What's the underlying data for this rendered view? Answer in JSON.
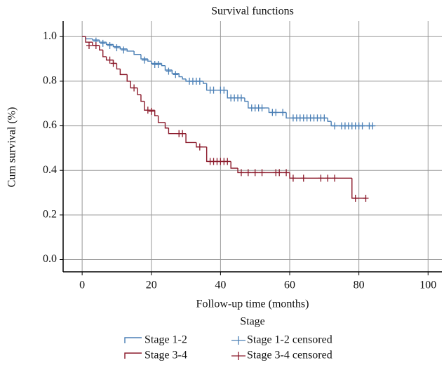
{
  "chart_data": {
    "type": "kaplan-meier",
    "title": "Survival functions",
    "x_label": "Follow-up time (months)",
    "y_label": "Cum survival (%)",
    "legend_title": "Stage",
    "xlim": [
      -5.5,
      104
    ],
    "ylim": [
      -0.055,
      1.07
    ],
    "xticks": [
      0,
      20,
      40,
      60,
      80,
      100
    ],
    "yticks": [
      {
        "value": 0,
        "label": "0.0"
      },
      0.2,
      0.4,
      0.6,
      0.8,
      {
        "value": 1,
        "label": "1.0"
      }
    ],
    "grid": true,
    "series": [
      {
        "name": "Stage 1-2",
        "color": "#4a7fb5",
        "style": "step",
        "x": [
          0,
          1,
          3,
          5,
          7,
          9,
          11,
          13,
          15,
          17,
          19,
          20,
          23,
          24,
          26,
          28,
          29,
          30,
          35,
          36,
          42,
          47,
          48,
          54,
          59,
          71,
          72,
          84
        ],
        "values": [
          1.0,
          0.99,
          0.985,
          0.975,
          0.965,
          0.955,
          0.945,
          0.935,
          0.92,
          0.9,
          0.89,
          0.88,
          0.87,
          0.85,
          0.835,
          0.82,
          0.81,
          0.8,
          0.79,
          0.76,
          0.725,
          0.71,
          0.68,
          0.66,
          0.635,
          0.62,
          0.6,
          0.6
        ]
      },
      {
        "name": "Stage 3-4",
        "color": "#8b1a2b",
        "style": "step",
        "x": [
          0,
          1,
          3,
          5,
          6,
          7,
          9,
          10,
          11,
          13,
          14,
          16,
          17,
          18,
          21,
          22,
          24,
          25,
          30,
          33,
          36,
          43,
          45,
          60,
          78,
          82
        ],
        "values": [
          1.0,
          0.975,
          0.96,
          0.94,
          0.91,
          0.895,
          0.88,
          0.855,
          0.83,
          0.8,
          0.77,
          0.74,
          0.71,
          0.67,
          0.645,
          0.615,
          0.59,
          0.565,
          0.525,
          0.505,
          0.44,
          0.41,
          0.39,
          0.365,
          0.275,
          0.275
        ]
      },
      {
        "name": "Stage 1-2 censored",
        "color": "#4a7fb5",
        "style": "censored",
        "x": [
          4,
          6,
          8,
          10,
          12,
          18,
          21,
          22,
          25,
          27,
          31,
          32,
          33,
          34,
          37,
          38,
          40,
          41,
          43,
          44,
          45,
          46,
          49,
          50,
          51,
          52,
          55,
          56,
          58,
          61,
          62,
          63,
          64,
          65,
          66,
          67,
          68,
          69,
          70,
          73,
          75,
          76,
          77,
          78,
          79,
          80,
          81,
          83,
          84
        ],
        "values": [
          0.98,
          0.97,
          0.96,
          0.95,
          0.94,
          0.895,
          0.875,
          0.875,
          0.845,
          0.83,
          0.8,
          0.8,
          0.8,
          0.8,
          0.76,
          0.76,
          0.76,
          0.76,
          0.725,
          0.725,
          0.725,
          0.725,
          0.68,
          0.68,
          0.68,
          0.68,
          0.66,
          0.66,
          0.66,
          0.635,
          0.635,
          0.635,
          0.635,
          0.635,
          0.635,
          0.635,
          0.635,
          0.635,
          0.635,
          0.6,
          0.6,
          0.6,
          0.6,
          0.6,
          0.6,
          0.6,
          0.6,
          0.6,
          0.6
        ]
      },
      {
        "name": "Stage 3-4 censored",
        "color": "#8b1a2b",
        "style": "censored",
        "x": [
          2,
          4,
          8,
          9,
          15,
          19,
          20,
          28,
          29,
          34,
          37,
          38,
          39,
          40,
          41,
          42,
          46,
          48,
          50,
          52,
          56,
          57,
          59,
          61,
          64,
          69,
          71,
          73,
          79,
          82
        ],
        "values": [
          0.96,
          0.96,
          0.895,
          0.88,
          0.77,
          0.67,
          0.665,
          0.565,
          0.565,
          0.505,
          0.44,
          0.44,
          0.44,
          0.44,
          0.44,
          0.44,
          0.39,
          0.39,
          0.39,
          0.39,
          0.39,
          0.39,
          0.39,
          0.365,
          0.365,
          0.365,
          0.365,
          0.365,
          0.275,
          0.275
        ]
      }
    ]
  }
}
